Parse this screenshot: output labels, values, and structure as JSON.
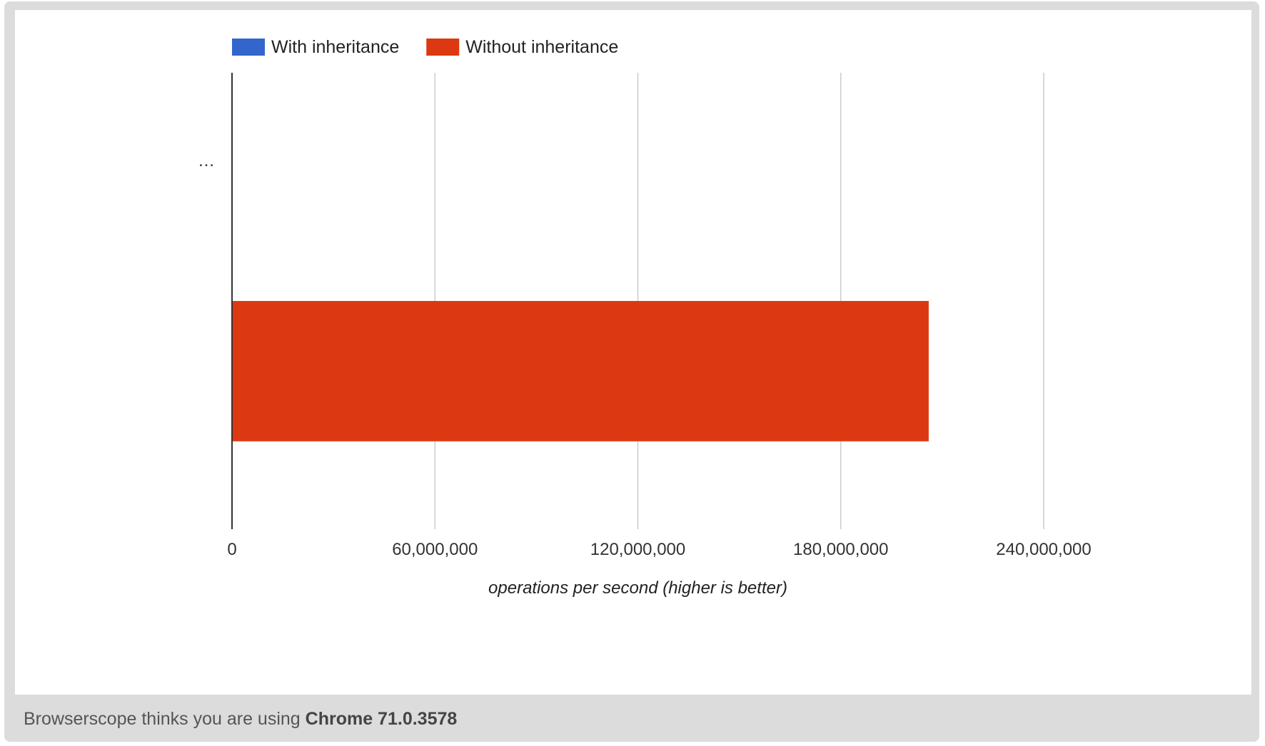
{
  "chart_data": {
    "type": "bar",
    "orientation": "horizontal",
    "categories": [
      "…"
    ],
    "series": [
      {
        "name": "With inheritance",
        "color": "#3366cc",
        "values": [
          0
        ]
      },
      {
        "name": "Without inheritance",
        "color": "#dc3912",
        "values": [
          206000000
        ]
      }
    ],
    "xlabel": "operations per second (higher is better)",
    "ylabel": "",
    "xlim": [
      0,
      240000000
    ],
    "x_ticks": [
      0,
      60000000,
      120000000,
      180000000,
      240000000
    ],
    "x_tick_labels": [
      "0",
      "60,000,000",
      "120,000,000",
      "180,000,000",
      "240,000,000"
    ],
    "grid": true,
    "legend_position": "top-left"
  },
  "footer": {
    "prefix": "Browserscope thinks you are using ",
    "browser": "Chrome 71.0.3578"
  }
}
